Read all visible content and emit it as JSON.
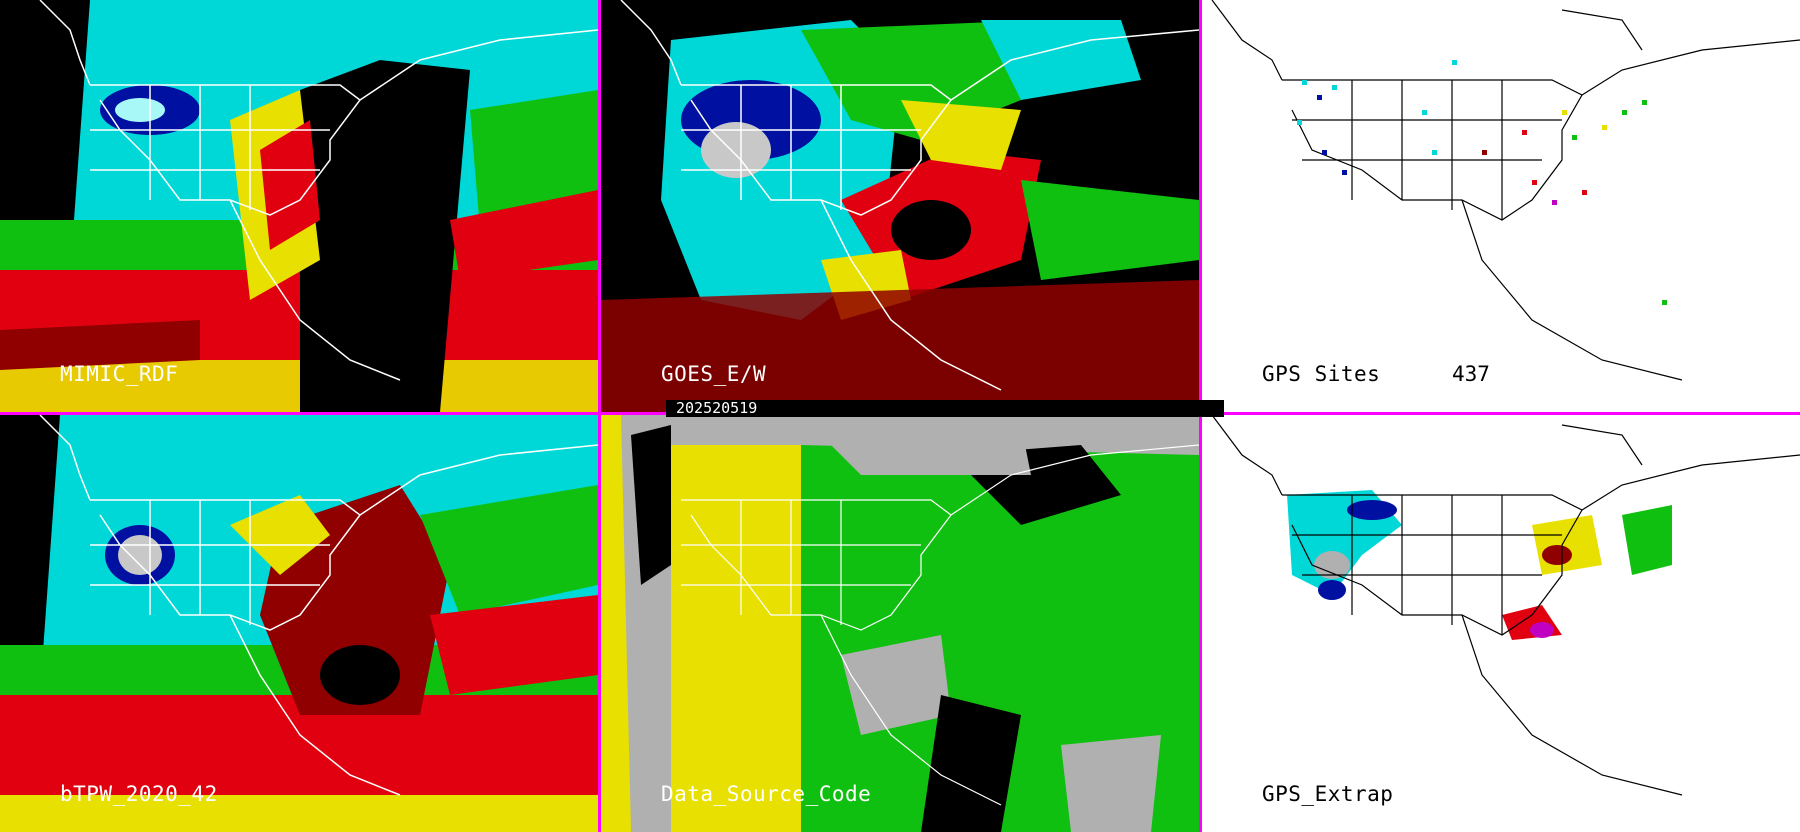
{
  "panels": [
    {
      "id": "p1",
      "label": "MIMIC_RDF",
      "style": "color"
    },
    {
      "id": "p2",
      "label": "GOES_E/W",
      "style": "color-sparse"
    },
    {
      "id": "p3",
      "label": "GPS Sites",
      "count": "437",
      "style": "white"
    },
    {
      "id": "p4",
      "label": "bTPW_2020_42",
      "style": "color"
    },
    {
      "id": "p5",
      "label": "Data_Source_Code",
      "style": "source"
    },
    {
      "id": "p6",
      "label": "GPS_Extrap",
      "style": "white"
    }
  ],
  "date": "202520519",
  "colors": {
    "separator": "#ff00ff",
    "cyan": "#00e0e0",
    "lightcyan": "#a8f8f8",
    "green": "#10c010",
    "yellow": "#e8e000",
    "red": "#e00010",
    "darkred": "#900000",
    "blue": "#0010a0",
    "gray": "#b0b0b0",
    "magenta": "#c000c0"
  }
}
